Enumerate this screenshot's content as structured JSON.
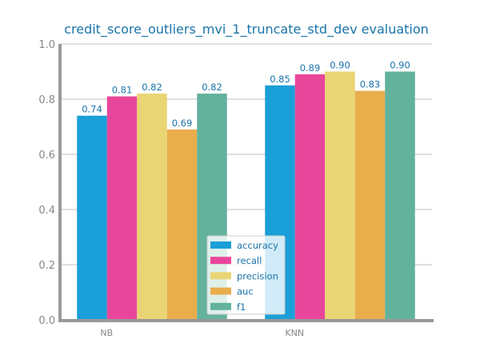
{
  "chart_data": {
    "type": "bar",
    "title": "credit_score_outliers_mvi_1_truncate_std_dev evaluation",
    "xlabel": "",
    "ylabel": "",
    "categories": [
      "NB",
      "KNN"
    ],
    "ylim": [
      0.0,
      1.0
    ],
    "yticks": [
      "0.0",
      "0.2",
      "0.4",
      "0.6",
      "0.8",
      "1.0"
    ],
    "grid": "horizontal",
    "legend_position": "bottom-center",
    "series": [
      {
        "name": "accuracy",
        "values": [
          0.74,
          0.85
        ],
        "labels": [
          "0.74",
          "0.85"
        ],
        "color": "#1a9fd9"
      },
      {
        "name": "recall",
        "values": [
          0.81,
          0.89
        ],
        "labels": [
          "0.81",
          "0.89"
        ],
        "color": "#e8469a"
      },
      {
        "name": "precision",
        "values": [
          0.82,
          0.9
        ],
        "labels": [
          "0.82",
          "0.90"
        ],
        "color": "#ead574"
      },
      {
        "name": "auc",
        "values": [
          0.69,
          0.83
        ],
        "labels": [
          "0.69",
          "0.83"
        ],
        "color": "#e9ad4c"
      },
      {
        "name": "f1",
        "values": [
          0.82,
          0.9
        ],
        "labels": [
          "0.82",
          "0.90"
        ],
        "color": "#62b29c"
      }
    ],
    "colors": {
      "title": "#1a73a8",
      "text": "#1a73a8",
      "tick": "#888888",
      "grid": "#cccccc",
      "axis": "#999999"
    }
  }
}
